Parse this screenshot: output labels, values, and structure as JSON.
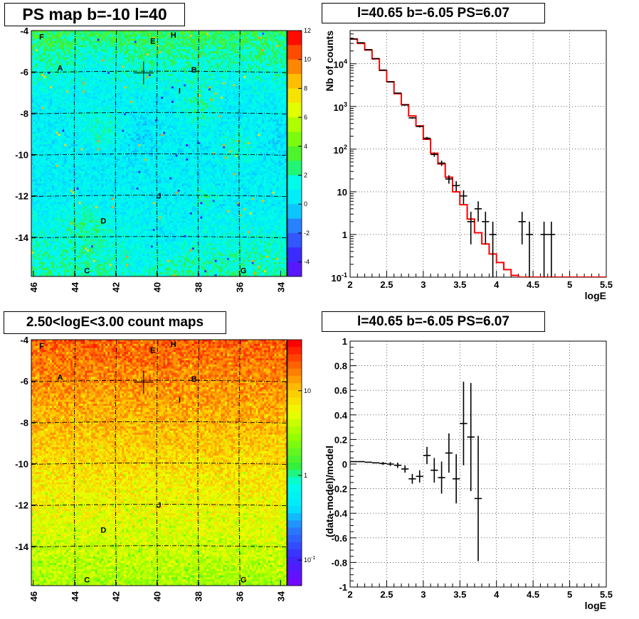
{
  "titles": {
    "top_left": "PS map b=-10 l=40",
    "top_right": "l=40.65 b=-6.05 PS=6.07",
    "bottom_left": "2.50<logE<3.00 count maps",
    "bottom_right": "l=40.65 b=-6.05 PS=6.07"
  },
  "chart_data": [
    {
      "type": "heatmap",
      "name": "PS map",
      "x_ticks": [
        "46",
        "44",
        "42",
        "40",
        "38",
        "36",
        "34"
      ],
      "x_tick_values": [
        46,
        44,
        42,
        40,
        38,
        36,
        34
      ],
      "xlim": [
        46.1,
        33.7
      ],
      "y_ticks": [
        "-4",
        "-6",
        "-8",
        "-10",
        "-12",
        "-14"
      ],
      "y_tick_values": [
        -4,
        -6,
        -8,
        -10,
        -12,
        -14
      ],
      "ylim": [
        -15.9,
        -4
      ],
      "colorbar_ticks": [
        "12",
        "10",
        "8",
        "6",
        "4",
        "2",
        "0",
        "-2",
        "-4"
      ],
      "colorbar_values": [
        12,
        10,
        8,
        6,
        4,
        2,
        0,
        -2,
        -4
      ],
      "zlim": [
        -5,
        12
      ],
      "source_labels": [
        {
          "label": "F",
          "l": 45.6,
          "b": -4.3
        },
        {
          "label": "H",
          "l": 39.2,
          "b": -4.2
        },
        {
          "label": "E",
          "l": 40.2,
          "b": -4.5
        },
        {
          "label": "A",
          "l": 44.7,
          "b": -5.8
        },
        {
          "label": "B",
          "l": 38.2,
          "b": -5.9
        },
        {
          "label": "I",
          "l": 38.9,
          "b": -6.9
        },
        {
          "label": "J",
          "l": 39.9,
          "b": -12.0
        },
        {
          "label": "D",
          "l": 42.6,
          "b": -13.2
        },
        {
          "label": "C",
          "l": 43.4,
          "b": -15.6
        },
        {
          "label": "G",
          "l": 35.8,
          "b": -15.6
        }
      ],
      "marker": {
        "l": 40.65,
        "b": -6.05
      }
    },
    {
      "type": "line",
      "name": "spectrum",
      "xlabel": "logE",
      "ylabel": "Nb of counts",
      "xlim": [
        2,
        5.5
      ],
      "ylim": [
        0.1,
        60000
      ],
      "log_y": true,
      "grid": true,
      "x_ticks": [
        "2",
        "2.5",
        "3",
        "3.5",
        "4",
        "4.5",
        "5",
        "5.5"
      ],
      "y_ticks": [
        {
          "v": 0.1,
          "base": "10",
          "exp": "-1"
        },
        {
          "v": 1,
          "label": "1"
        },
        {
          "v": 10,
          "label": "10"
        },
        {
          "v": 100,
          "base": "10",
          "exp": "2"
        },
        {
          "v": 1000,
          "base": "10",
          "exp": "3"
        },
        {
          "v": 10000,
          "base": "10",
          "exp": "4"
        }
      ],
      "bin_edges": [
        2.0,
        2.1,
        2.2,
        2.3,
        2.4,
        2.5,
        2.6,
        2.7,
        2.8,
        2.9,
        3.0,
        3.1,
        3.2,
        3.3,
        3.4,
        3.5,
        3.6,
        3.7,
        3.8,
        3.9,
        4.0,
        4.1,
        4.2,
        4.3,
        4.4,
        4.5,
        4.6,
        4.7,
        4.8,
        4.9,
        5.0,
        5.1,
        5.2,
        5.3,
        5.4,
        5.5
      ],
      "model": [
        38000,
        30000,
        21000,
        13000,
        7000,
        3800,
        2000,
        1100,
        600,
        350,
        170,
        80,
        45,
        22,
        10,
        5,
        2.3,
        1.1,
        0.6,
        0.35,
        0.22,
        0.15,
        0.11,
        0.1,
        0.1,
        0.1,
        0.1,
        0.1,
        0.1,
        0.1,
        0.1,
        0.1,
        0.1,
        0.1,
        0.1
      ],
      "data": [
        {
          "x": 2.05,
          "y": 38000
        },
        {
          "x": 2.15,
          "y": 31000
        },
        {
          "x": 2.25,
          "y": 21500
        },
        {
          "x": 2.35,
          "y": 13200
        },
        {
          "x": 2.45,
          "y": 7100
        },
        {
          "x": 2.55,
          "y": 3750
        },
        {
          "x": 2.65,
          "y": 2050
        },
        {
          "x": 2.75,
          "y": 1080
        },
        {
          "x": 2.85,
          "y": 540
        },
        {
          "x": 2.95,
          "y": 340
        },
        {
          "x": 3.05,
          "y": 180
        },
        {
          "x": 3.15,
          "y": 75
        },
        {
          "x": 3.25,
          "y": 47
        },
        {
          "x": 3.35,
          "y": 20
        },
        {
          "x": 3.45,
          "y": 14
        },
        {
          "x": 3.55,
          "y": 8
        },
        {
          "x": 3.65,
          "y": 2
        },
        {
          "x": 3.75,
          "y": 4
        },
        {
          "x": 3.85,
          "y": 2
        },
        {
          "x": 3.95,
          "y": 1
        },
        {
          "x": 4.35,
          "y": 2
        },
        {
          "x": 4.45,
          "y": 1
        },
        {
          "x": 4.65,
          "y": 1
        },
        {
          "x": 4.75,
          "y": 1
        }
      ]
    },
    {
      "type": "heatmap",
      "name": "count map",
      "x_ticks": [
        "46",
        "44",
        "42",
        "40",
        "38",
        "36",
        "34"
      ],
      "x_tick_values": [
        46,
        44,
        42,
        40,
        38,
        36,
        34
      ],
      "xlim": [
        46.1,
        33.7
      ],
      "y_ticks": [
        "-4",
        "-6",
        "-8",
        "-10",
        "-12",
        "-14"
      ],
      "y_tick_values": [
        -4,
        -6,
        -8,
        -10,
        -12,
        -14
      ],
      "ylim": [
        -15.9,
        -4
      ],
      "log_z": true,
      "colorbar_ticks": [
        {
          "v": 10,
          "label": "10"
        },
        {
          "v": 1,
          "label": "1"
        },
        {
          "v": 0.1,
          "base": "10",
          "exp": "-1"
        }
      ],
      "zlim": [
        0.05,
        40
      ],
      "source_labels": [
        {
          "label": "F",
          "l": 45.6,
          "b": -4.3
        },
        {
          "label": "H",
          "l": 39.2,
          "b": -4.2
        },
        {
          "label": "E",
          "l": 40.2,
          "b": -4.5
        },
        {
          "label": "A",
          "l": 44.7,
          "b": -5.8
        },
        {
          "label": "B",
          "l": 38.2,
          "b": -5.9
        },
        {
          "label": "I",
          "l": 38.9,
          "b": -6.9
        },
        {
          "label": "J",
          "l": 39.9,
          "b": -12.0
        },
        {
          "label": "D",
          "l": 42.6,
          "b": -13.2
        },
        {
          "label": "C",
          "l": 43.4,
          "b": -15.6
        },
        {
          "label": "G",
          "l": 35.8,
          "b": -15.6
        }
      ],
      "marker": {
        "l": 40.65,
        "b": -6.05
      }
    },
    {
      "type": "scatter",
      "name": "residuals",
      "xlabel": "logE",
      "ylabel": "(data-model)/model",
      "xlim": [
        2,
        5.5
      ],
      "ylim": [
        -1,
        1
      ],
      "grid": true,
      "x_ticks": [
        "2",
        "2.5",
        "3",
        "3.5",
        "4",
        "4.5",
        "5",
        "5.5"
      ],
      "y_ticks": [
        "1",
        "0.8",
        "0.6",
        "0.4",
        "0.2",
        "0",
        "-0.2",
        "-0.4",
        "-0.6",
        "-0.8",
        "-1"
      ],
      "y_tick_values": [
        1,
        0.8,
        0.6,
        0.4,
        0.2,
        0,
        -0.2,
        -0.4,
        -0.6,
        -0.8,
        -1
      ],
      "points": [
        {
          "x": 2.05,
          "y": 0.02,
          "e": 0.005
        },
        {
          "x": 2.15,
          "y": 0.02,
          "e": 0.006
        },
        {
          "x": 2.25,
          "y": 0.015,
          "e": 0.007
        },
        {
          "x": 2.35,
          "y": 0.01,
          "e": 0.009
        },
        {
          "x": 2.45,
          "y": 0.005,
          "e": 0.012
        },
        {
          "x": 2.55,
          "y": 0.0,
          "e": 0.016
        },
        {
          "x": 2.65,
          "y": -0.01,
          "e": 0.022
        },
        {
          "x": 2.75,
          "y": -0.04,
          "e": 0.03
        },
        {
          "x": 2.85,
          "y": -0.12,
          "e": 0.04
        },
        {
          "x": 2.95,
          "y": -0.1,
          "e": 0.05
        },
        {
          "x": 3.05,
          "y": 0.07,
          "e": 0.07
        },
        {
          "x": 3.15,
          "y": -0.05,
          "e": 0.1
        },
        {
          "x": 3.25,
          "y": -0.11,
          "e": 0.13
        },
        {
          "x": 3.35,
          "y": 0.09,
          "e": 0.16
        },
        {
          "x": 3.45,
          "y": -0.12,
          "e": 0.2
        },
        {
          "x": 3.55,
          "y": 0.33,
          "e": 0.34
        },
        {
          "x": 3.65,
          "y": 0.22,
          "e": 0.44
        },
        {
          "x": 3.75,
          "y": -0.28,
          "e": 0.51
        }
      ]
    }
  ]
}
